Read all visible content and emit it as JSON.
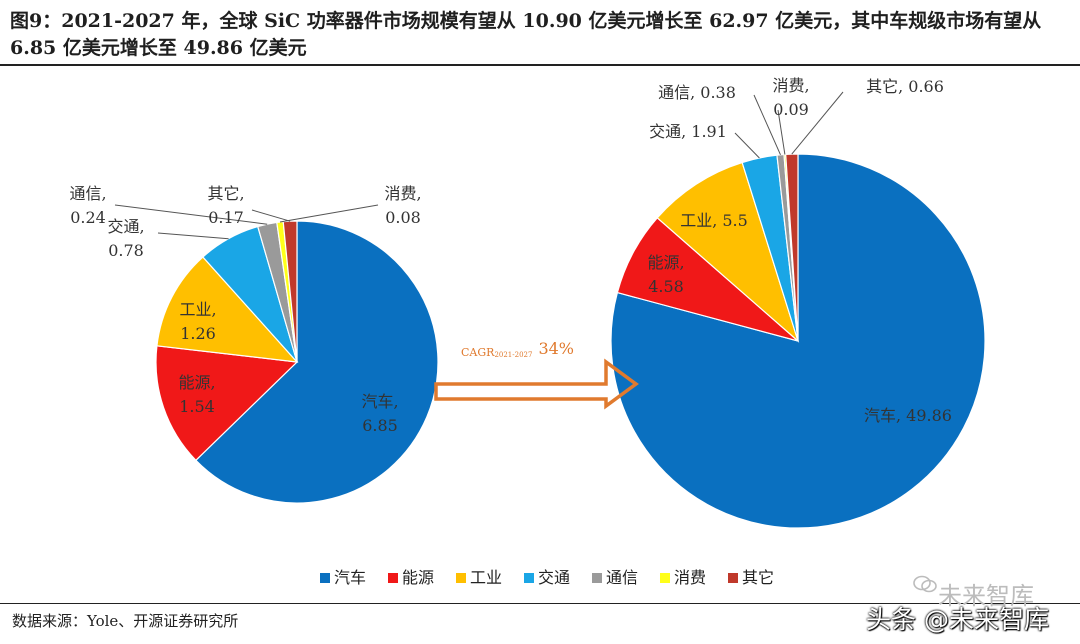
{
  "title": {
    "line1": "图9：2021-2027 年，全球 SiC 功率器件市场规模有望从 10.90 亿美元增长至 62.97 亿美元，其中车规级市场有望从",
    "line2": "6.85 亿美元增长至 49.86 亿美元"
  },
  "source": "数据来源：Yole、开源证券研究所",
  "watermark": {
    "primary": "未来智库",
    "secondary": "头条 @未来智库"
  },
  "cagr": {
    "prefix": "CAGR",
    "period": "2021-2027",
    "value": "34%"
  },
  "colors": {
    "汽车": "#0A70C0",
    "能源": "#F01818",
    "工业": "#FFBF00",
    "交通": "#1AA6E6",
    "通信": "#9A9A9A",
    "消费": "#FFFF1A",
    "其它": "#C0392B",
    "arrow": "#E07A2E"
  },
  "chart_data": [
    {
      "type": "pie",
      "year": "2021",
      "unit": "亿美元",
      "categories": [
        "汽车",
        "能源",
        "工业",
        "交通",
        "通信",
        "消费",
        "其它"
      ],
      "values": [
        6.85,
        1.54,
        1.26,
        0.78,
        0.24,
        0.08,
        0.17
      ],
      "labels": [
        {
          "category": "汽车",
          "line1": "汽车,",
          "line2": "6.85"
        },
        {
          "category": "能源",
          "line1": "能源,",
          "line2": "1.54"
        },
        {
          "category": "工业",
          "line1": "工业,",
          "line2": "1.26"
        },
        {
          "category": "交通",
          "line1": "交通,",
          "line2": "0.78"
        },
        {
          "category": "通信",
          "line1": "通信,",
          "line2": "0.24"
        },
        {
          "category": "消费",
          "line1": "消费,",
          "line2": "0.08"
        },
        {
          "category": "其它",
          "line1": "其它,",
          "line2": "0.17"
        }
      ]
    },
    {
      "type": "pie",
      "year": "2027",
      "unit": "亿美元",
      "categories": [
        "汽车",
        "能源",
        "工业",
        "交通",
        "通信",
        "消费",
        "其它"
      ],
      "values": [
        49.86,
        4.58,
        5.5,
        1.91,
        0.38,
        0.09,
        0.66
      ],
      "labels": [
        {
          "category": "汽车",
          "line1": "汽车, 49.86",
          "line2": ""
        },
        {
          "category": "能源",
          "line1": "能源,",
          "line2": "4.58"
        },
        {
          "category": "工业",
          "line1": "工业, 5.5",
          "line2": ""
        },
        {
          "category": "交通",
          "line1": "交通, 1.91",
          "line2": ""
        },
        {
          "category": "通信",
          "line1": "通信, 0.38",
          "line2": ""
        },
        {
          "category": "消费",
          "line1": "消费,",
          "line2": "0.09"
        },
        {
          "category": "其它",
          "line1": "其它, 0.66",
          "line2": ""
        }
      ]
    }
  ],
  "legend": [
    "汽车",
    "能源",
    "工业",
    "交通",
    "通信",
    "消费",
    "其它"
  ]
}
